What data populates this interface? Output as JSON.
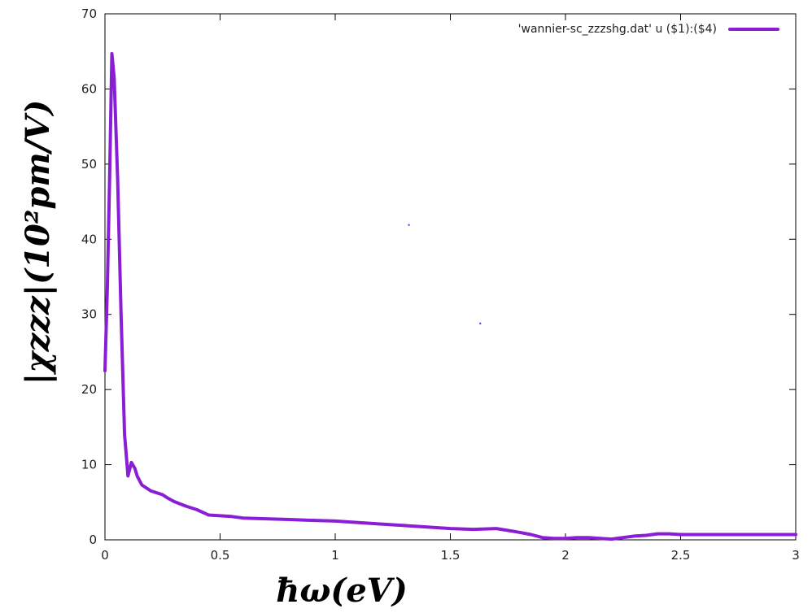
{
  "chart_data": {
    "type": "line",
    "xlabel": "ħω(eV)",
    "ylabel": "|χzzz|(10²pm/V)",
    "xlim": [
      0,
      3
    ],
    "ylim": [
      0,
      70
    ],
    "x_ticks": [
      "0",
      "0.5",
      "1",
      "1.5",
      "2",
      "2.5",
      "3"
    ],
    "y_ticks": [
      "0",
      "10",
      "20",
      "30",
      "40",
      "50",
      "60",
      "70"
    ],
    "grid": false,
    "legend_position": "top-right",
    "series": [
      {
        "name": "'wannier-sc_zzzshg.dat' u ($1):($4)",
        "color": "#8a1ed6",
        "x": [
          0.0,
          0.01,
          0.02,
          0.03,
          0.04,
          0.055,
          0.07,
          0.085,
          0.1,
          0.115,
          0.13,
          0.14,
          0.16,
          0.2,
          0.25,
          0.27,
          0.3,
          0.35,
          0.4,
          0.45,
          0.5,
          0.55,
          0.6,
          0.7,
          0.8,
          0.9,
          1.0,
          1.1,
          1.2,
          1.3,
          1.4,
          1.5,
          1.6,
          1.7,
          1.8,
          1.85,
          1.9,
          1.95,
          2.0,
          2.05,
          2.1,
          2.15,
          2.2,
          2.25,
          2.3,
          2.35,
          2.4,
          2.45,
          2.5,
          2.55,
          2.6,
          2.7,
          2.8,
          2.9,
          3.0
        ],
        "y": [
          22.5,
          33.0,
          48.0,
          64.7,
          61.5,
          48.0,
          30.0,
          14.0,
          8.5,
          10.3,
          9.5,
          8.5,
          7.3,
          6.5,
          6.0,
          5.6,
          5.1,
          4.5,
          4.0,
          3.3,
          3.2,
          3.1,
          2.9,
          2.8,
          2.7,
          2.6,
          2.5,
          2.3,
          2.1,
          1.9,
          1.7,
          1.5,
          1.4,
          1.5,
          1.0,
          0.7,
          0.3,
          0.2,
          0.2,
          0.3,
          0.3,
          0.2,
          0.1,
          0.3,
          0.5,
          0.6,
          0.8,
          0.8,
          0.7,
          0.7,
          0.7,
          0.7,
          0.7,
          0.7,
          0.7
        ]
      }
    ],
    "stray_points": [
      {
        "x": 1.32,
        "y": 41.9,
        "color": "#1f3bff"
      },
      {
        "x": 1.63,
        "y": 28.8,
        "color": "#1f3bff"
      }
    ]
  }
}
